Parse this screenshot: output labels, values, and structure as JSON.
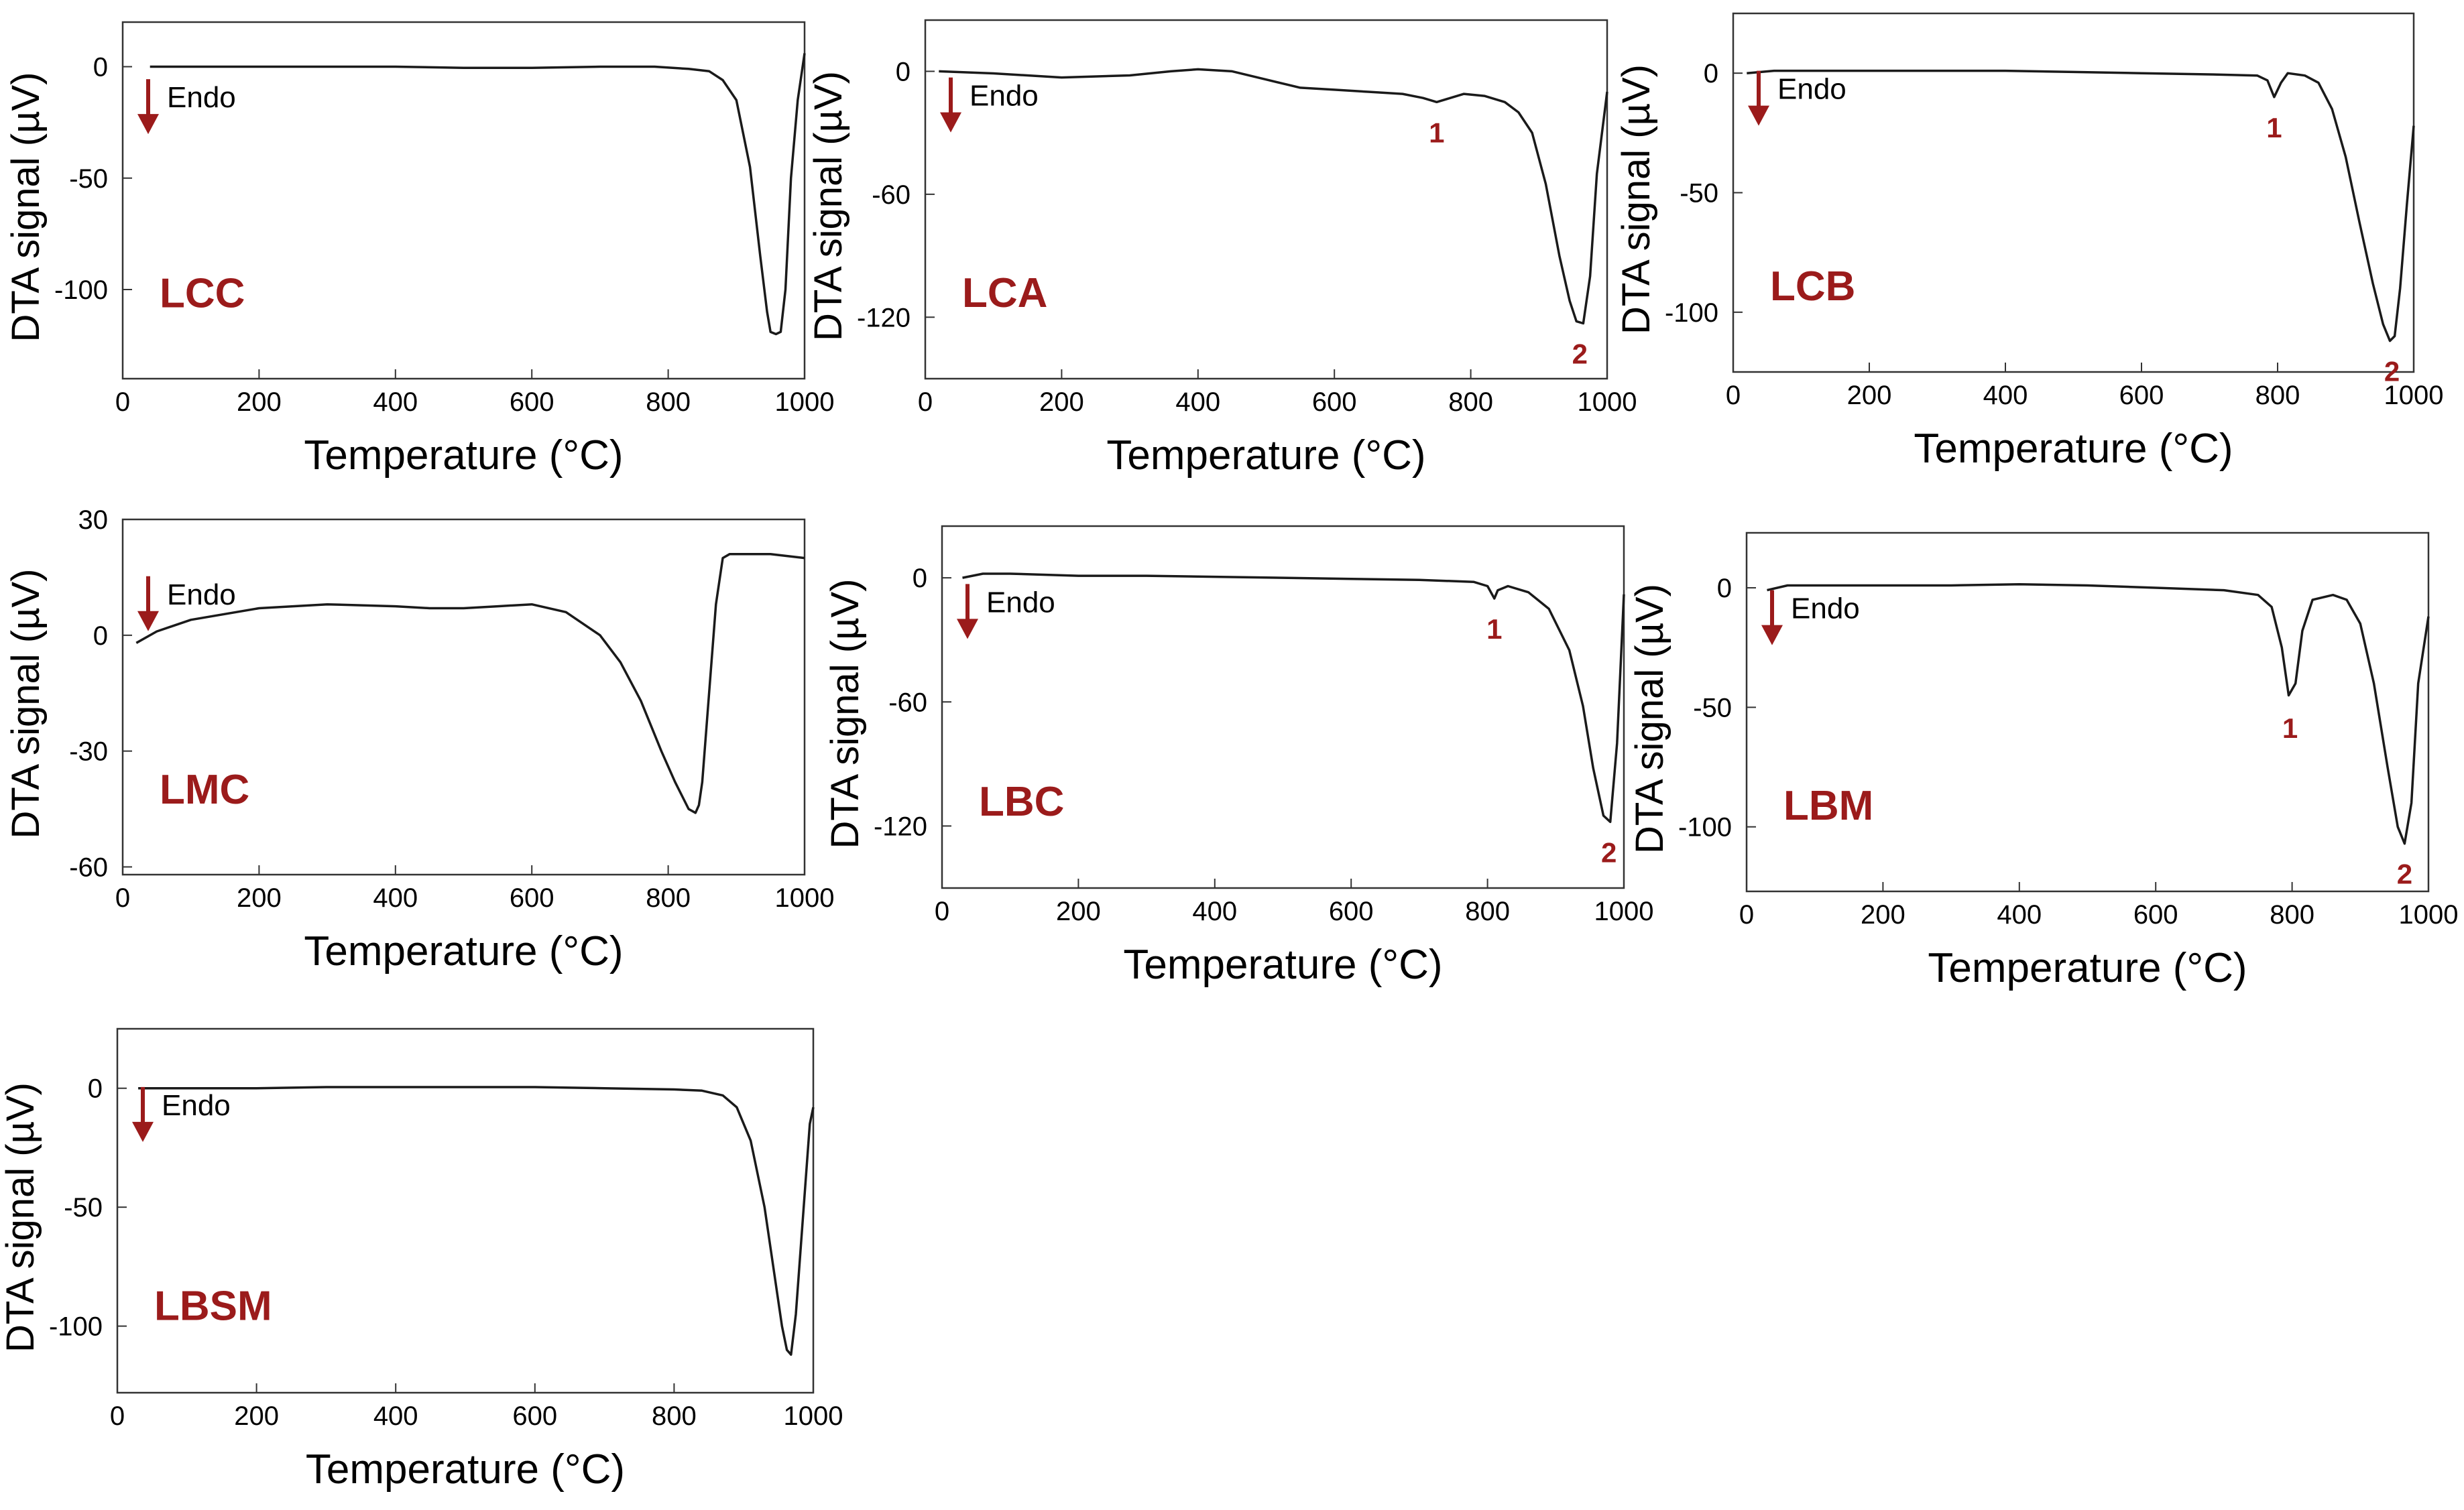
{
  "figure": {
    "x_axis_label": "Temperature (°C)",
    "y_axis_label": "DTA signal (µV)",
    "endo_label": "Endo",
    "label_color": "#9b1b1b",
    "line_color": "#1a1a1a"
  },
  "chart_data": [
    {
      "type": "line",
      "name": "LCC",
      "sample_label": "LCC",
      "xlabel": "Temperature (°C)",
      "ylabel": "DTA signal (µV)",
      "xlim": [
        0,
        1000
      ],
      "ylim": [
        -140,
        20
      ],
      "xticks": [
        0,
        200,
        400,
        600,
        800,
        1000
      ],
      "yticks": [
        0,
        -50,
        -100
      ],
      "x": [
        40,
        100,
        200,
        300,
        400,
        500,
        600,
        700,
        780,
        830,
        860,
        880,
        900,
        920,
        935,
        945,
        950,
        958,
        965,
        972,
        980,
        990,
        1000
      ],
      "y": [
        0,
        0,
        0,
        0,
        0,
        -0.5,
        -0.5,
        0,
        0,
        -1,
        -2,
        -6,
        -15,
        -45,
        -85,
        -110,
        -119,
        -120,
        -119,
        -100,
        -50,
        -15,
        6
      ],
      "peaks": []
    },
    {
      "type": "line",
      "name": "LCA",
      "sample_label": "LCA",
      "xlabel": "Temperature (°C)",
      "ylabel": "DTA signal (µV)",
      "xlim": [
        0,
        1000
      ],
      "ylim": [
        -150,
        25
      ],
      "xticks": [
        0,
        200,
        400,
        600,
        800,
        1000
      ],
      "yticks": [
        0,
        -60,
        -120
      ],
      "x": [
        20,
        100,
        200,
        300,
        360,
        400,
        450,
        500,
        550,
        600,
        650,
        700,
        730,
        750,
        770,
        790,
        820,
        850,
        870,
        890,
        910,
        930,
        945,
        955,
        965,
        975,
        985,
        1000
      ],
      "y": [
        0,
        -1,
        -3,
        -2,
        0,
        1,
        0,
        -4,
        -8,
        -9,
        -10,
        -11,
        -13,
        -15,
        -13,
        -11,
        -12,
        -15,
        -20,
        -30,
        -55,
        -90,
        -112,
        -122,
        -123,
        -100,
        -50,
        -10
      ],
      "peaks": [
        {
          "label": "1",
          "x": 750,
          "y": -15
        },
        {
          "label": "2",
          "x": 960,
          "y": -123
        }
      ]
    },
    {
      "type": "line",
      "name": "LCB",
      "sample_label": "LCB",
      "xlabel": "Temperature (°C)",
      "ylabel": "DTA signal (µV)",
      "xlim": [
        0,
        1000
      ],
      "ylim": [
        -125,
        25
      ],
      "xticks": [
        0,
        200,
        400,
        600,
        800,
        1000
      ],
      "yticks": [
        0,
        -50,
        -100
      ],
      "x": [
        20,
        60,
        100,
        200,
        300,
        400,
        500,
        600,
        700,
        770,
        785,
        795,
        805,
        815,
        840,
        860,
        880,
        900,
        920,
        940,
        955,
        965,
        972,
        980,
        990,
        1000
      ],
      "y": [
        0,
        1,
        1,
        1,
        1,
        1,
        0.5,
        0,
        -0.5,
        -1,
        -3,
        -10,
        -4,
        0,
        -1,
        -4,
        -15,
        -35,
        -62,
        -88,
        -105,
        -112,
        -110,
        -90,
        -55,
        -22
      ],
      "peaks": [
        {
          "label": "1",
          "x": 795,
          "y": -10
        },
        {
          "label": "2",
          "x": 968,
          "y": -112
        }
      ]
    },
    {
      "type": "line",
      "name": "LMC",
      "sample_label": "LMC",
      "xlabel": "Temperature (°C)",
      "ylabel": "DTA signal (µV)",
      "xlim": [
        0,
        1000
      ],
      "ylim": [
        -62,
        30
      ],
      "xticks": [
        0,
        200,
        400,
        600,
        800,
        1000
      ],
      "yticks": [
        30,
        0,
        -30,
        -60
      ],
      "x": [
        20,
        50,
        100,
        200,
        300,
        400,
        450,
        500,
        550,
        600,
        650,
        700,
        730,
        760,
        790,
        810,
        830,
        840,
        845,
        850,
        860,
        870,
        880,
        890,
        950,
        1000
      ],
      "y": [
        -2,
        1,
        4,
        7,
        8,
        7.5,
        7,
        7,
        7.5,
        8,
        6,
        0,
        -7,
        -17,
        -30,
        -38,
        -45,
        -46,
        -44,
        -38,
        -15,
        8,
        20,
        21,
        21,
        20
      ],
      "peaks": []
    },
    {
      "type": "line",
      "name": "LBC",
      "sample_label": "LBC",
      "xlabel": "Temperature (°C)",
      "ylabel": "DTA signal (µV)",
      "xlim": [
        0,
        1000
      ],
      "ylim": [
        -150,
        25
      ],
      "xticks": [
        0,
        200,
        400,
        600,
        800,
        1000
      ],
      "yticks": [
        0,
        -60,
        -120
      ],
      "x": [
        30,
        60,
        100,
        200,
        300,
        400,
        500,
        600,
        700,
        780,
        800,
        810,
        815,
        830,
        860,
        890,
        920,
        940,
        955,
        970,
        980,
        990,
        1000
      ],
      "y": [
        0,
        2,
        2,
        1,
        1,
        0.5,
        0,
        -0.5,
        -1,
        -2,
        -4,
        -10,
        -6,
        -4,
        -7,
        -15,
        -35,
        -62,
        -92,
        -115,
        -118,
        -80,
        -8
      ],
      "peaks": [
        {
          "label": "1",
          "x": 810,
          "y": -10
        },
        {
          "label": "2",
          "x": 978,
          "y": -118
        }
      ]
    },
    {
      "type": "line",
      "name": "LBM",
      "sample_label": "LBM",
      "xlabel": "Temperature (°C)",
      "ylabel": "DTA signal (µV)",
      "xlim": [
        0,
        1000
      ],
      "ylim": [
        -127,
        23
      ],
      "xticks": [
        0,
        200,
        400,
        600,
        800,
        1000
      ],
      "yticks": [
        0,
        -50,
        -100
      ],
      "x": [
        30,
        60,
        100,
        200,
        300,
        400,
        500,
        600,
        700,
        750,
        770,
        785,
        795,
        805,
        815,
        830,
        860,
        880,
        900,
        920,
        940,
        955,
        965,
        975,
        985,
        1000
      ],
      "y": [
        -1,
        1,
        1,
        1,
        1,
        1.5,
        1,
        0,
        -1,
        -3,
        -8,
        -25,
        -45,
        -40,
        -18,
        -5,
        -3,
        -5,
        -15,
        -40,
        -75,
        -100,
        -107,
        -90,
        -40,
        -12
      ],
      "peaks": [
        {
          "label": "1",
          "x": 797,
          "y": -46
        },
        {
          "label": "2",
          "x": 965,
          "y": -107
        }
      ]
    },
    {
      "type": "line",
      "name": "LBSM",
      "sample_label": "LBSM",
      "xlabel": "Temperature (°C)",
      "ylabel": "DTA signal (µV)",
      "xlim": [
        0,
        1000
      ],
      "ylim": [
        -128,
        25
      ],
      "xticks": [
        0,
        200,
        400,
        600,
        800,
        1000
      ],
      "yticks": [
        0,
        -50,
        -100
      ],
      "x": [
        30,
        100,
        200,
        300,
        400,
        500,
        600,
        700,
        800,
        840,
        870,
        890,
        910,
        930,
        945,
        955,
        962,
        968,
        975,
        985,
        995,
        1000
      ],
      "y": [
        0,
        0,
        0,
        0.5,
        0.5,
        0.5,
        0.5,
        0,
        -0.5,
        -1,
        -3,
        -8,
        -22,
        -50,
        -80,
        -100,
        -110,
        -112,
        -95,
        -55,
        -15,
        -8
      ],
      "peaks": []
    }
  ]
}
